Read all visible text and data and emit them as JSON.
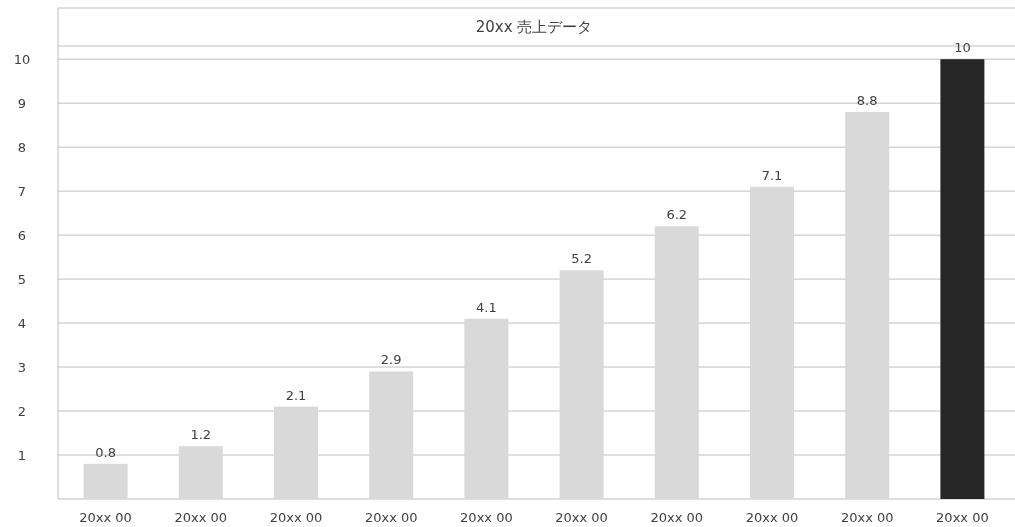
{
  "chart_data": {
    "type": "bar",
    "title": "20xx 売上データ",
    "categories": [
      "20xx 00",
      "20xx 00",
      "20xx 00",
      "20xx 00",
      "20xx 00",
      "20xx 00",
      "20xx 00",
      "20xx 00",
      "20xx 00",
      "20xx 00"
    ],
    "values": [
      0.8,
      1.2,
      2.1,
      2.9,
      4.1,
      5.2,
      6.2,
      7.1,
      8.8,
      10
    ],
    "colors": [
      "#d9d9d9",
      "#d9d9d9",
      "#d9d9d9",
      "#d9d9d9",
      "#d9d9d9",
      "#d9d9d9",
      "#d9d9d9",
      "#d9d9d9",
      "#d9d9d9",
      "#262626"
    ],
    "ylim": [
      0,
      10.3
    ],
    "yticks": [
      1,
      2,
      3,
      4,
      5,
      6,
      7,
      8,
      9,
      10
    ],
    "grid": "y",
    "data_labels": true
  }
}
